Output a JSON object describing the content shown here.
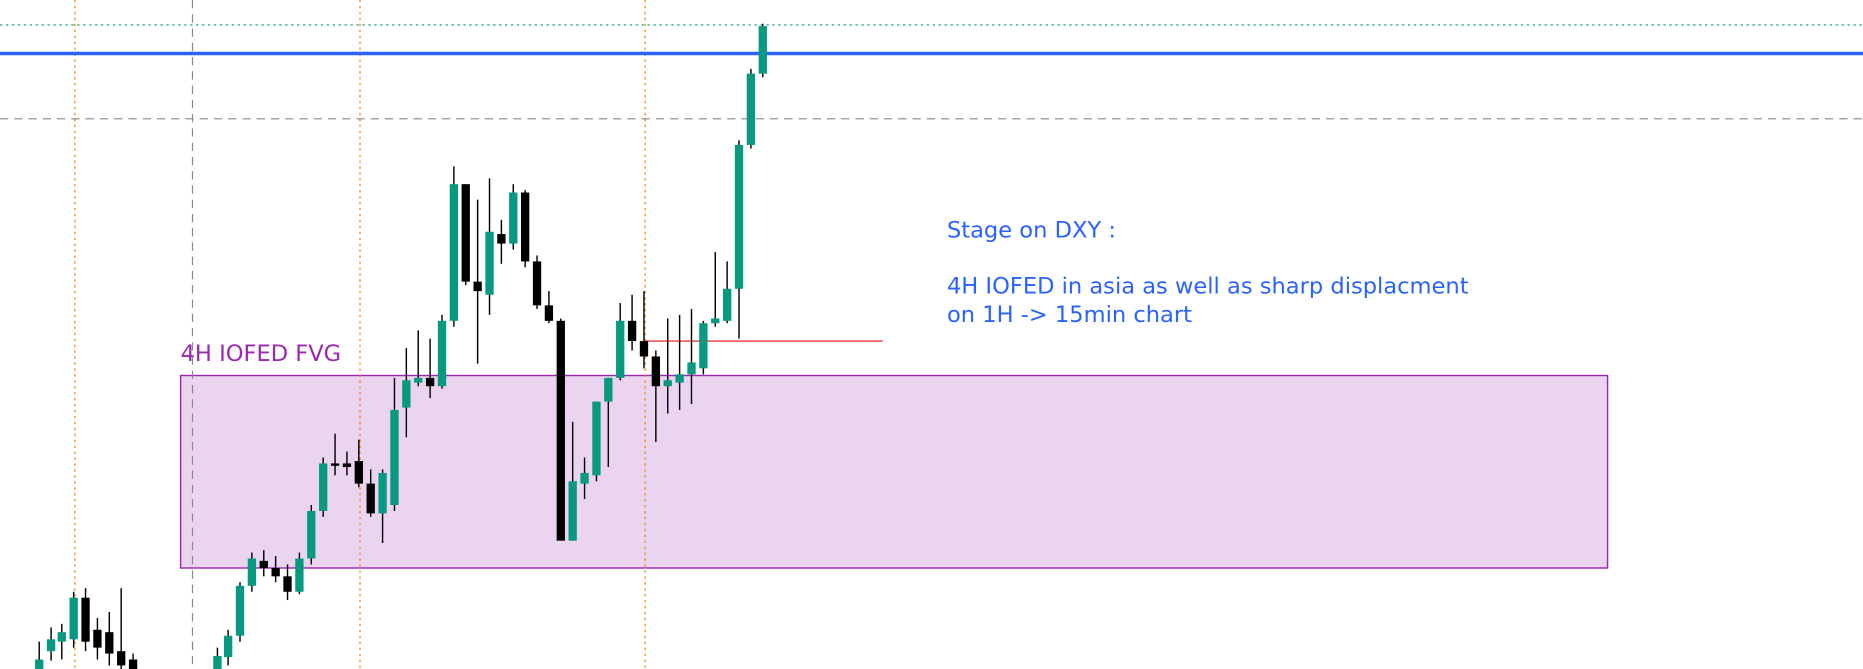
{
  "chart_data": {
    "type": "candlestick",
    "xlim": [
      0,
      1568
    ],
    "ylim": [
      0,
      563
    ],
    "up_color": "#089981",
    "down_color": "#000000",
    "x": [
      33,
      43,
      52,
      62,
      72,
      82,
      92,
      102,
      112,
      183,
      192,
      202,
      212,
      222,
      232,
      242,
      252,
      262,
      272,
      282,
      292,
      302,
      312,
      322,
      332,
      342,
      352,
      362,
      372,
      382,
      392,
      402,
      412,
      422,
      432,
      442,
      452,
      462,
      472,
      482,
      492,
      502,
      512,
      522,
      532,
      542,
      552,
      562,
      572,
      582,
      592,
      602,
      612,
      622,
      632,
      642
    ],
    "open": [
      0,
      15,
      23,
      25,
      60,
      33,
      31,
      15,
      8,
      0,
      10,
      28,
      70,
      91,
      85,
      78,
      65,
      93,
      133,
      173,
      173,
      175,
      156,
      131,
      138,
      220,
      241,
      245,
      238,
      293,
      408,
      326,
      315,
      366,
      358,
      401,
      343,
      306,
      293,
      108,
      156,
      163,
      225,
      245,
      293,
      276,
      263,
      238,
      241,
      248,
      253,
      291,
      293,
      320,
      441,
      501
    ],
    "high": [
      23,
      35,
      38,
      65,
      68,
      43,
      48,
      68,
      13,
      18,
      33,
      73,
      98,
      100,
      95,
      88,
      98,
      138,
      178,
      198,
      183,
      193,
      168,
      168,
      245,
      270,
      285,
      278,
      298,
      423,
      408,
      395,
      413,
      378,
      408,
      403,
      348,
      318,
      295,
      208,
      178,
      225,
      245,
      308,
      315,
      318,
      268,
      295,
      298,
      303,
      293,
      351,
      343,
      445,
      505,
      543
    ],
    "low": [
      0,
      7,
      8,
      18,
      15,
      8,
      3,
      0,
      0,
      0,
      3,
      23,
      65,
      78,
      73,
      58,
      63,
      88,
      128,
      163,
      163,
      153,
      128,
      106,
      133,
      195,
      238,
      228,
      236,
      288,
      323,
      257,
      298,
      341,
      353,
      338,
      303,
      291,
      108,
      108,
      143,
      158,
      170,
      243,
      268,
      253,
      191,
      215,
      218,
      223,
      248,
      288,
      291,
      278,
      438,
      498
    ],
    "close": [
      8,
      25,
      31,
      60,
      23,
      18,
      13,
      3,
      0,
      11,
      28,
      70,
      93,
      85,
      78,
      65,
      93,
      133,
      173,
      171,
      170,
      156,
      131,
      165,
      218,
      243,
      245,
      238,
      293,
      408,
      326,
      318,
      368,
      358,
      401,
      343,
      306,
      293,
      108,
      158,
      165,
      225,
      245,
      293,
      276,
      263,
      238,
      243,
      248,
      258,
      291,
      295,
      320,
      441,
      501,
      541
    ],
    "levels": [
      {
        "value": 542,
        "color": "#089981",
        "style": "dotted"
      },
      {
        "value": 518,
        "color": "#2962ff",
        "style": "solid"
      },
      {
        "value": 463,
        "color": "#888888",
        "style": "dashed"
      }
    ],
    "vlines": [
      {
        "value": 63,
        "color": "#f57c00",
        "style": "dotted"
      },
      {
        "value": 162,
        "color": "#888888",
        "style": "dashed"
      },
      {
        "value": 303,
        "color": "#f57c00",
        "style": "dotted"
      },
      {
        "value": 543,
        "color": "#f57c00",
        "style": "dotted"
      }
    ],
    "segment": {
      "value": 276,
      "x": [
        543,
        743
      ],
      "color": "#f23645"
    },
    "zone": {
      "label": "4H IOFED FVG",
      "x": [
        152,
        1353
      ],
      "y": [
        85,
        247
      ],
      "color": "#9c27b0"
    },
    "annotations": [
      "Stage on DXY :",
      "4H IOFED in asia as well as sharp displacment",
      "on 1H -> 15min chart"
    ]
  }
}
